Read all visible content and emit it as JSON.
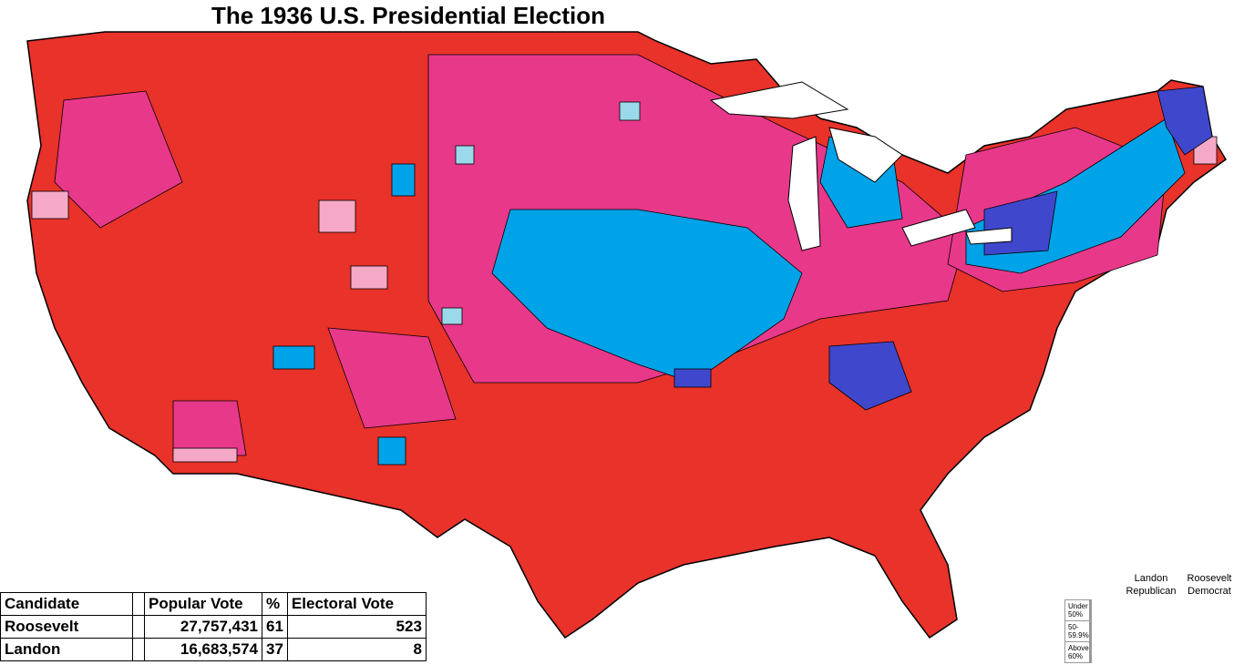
{
  "header": {
    "title": "The 1936 U.S. Presidential Election"
  },
  "table": {
    "columns": [
      "Candidate",
      "Popular Vote",
      "%",
      "Electoral Vote"
    ],
    "rows": [
      [
        "Roosevelt",
        "27,757,431",
        "61",
        "523"
      ],
      [
        "Landon",
        "16,683,574",
        "37",
        "8"
      ]
    ]
  },
  "legend": {
    "parties": [
      "Landon Republican",
      "Roosevelt Democrat"
    ],
    "levels": [
      "Under 50%",
      "50-59.9%",
      "Above 60%"
    ]
  }
}
